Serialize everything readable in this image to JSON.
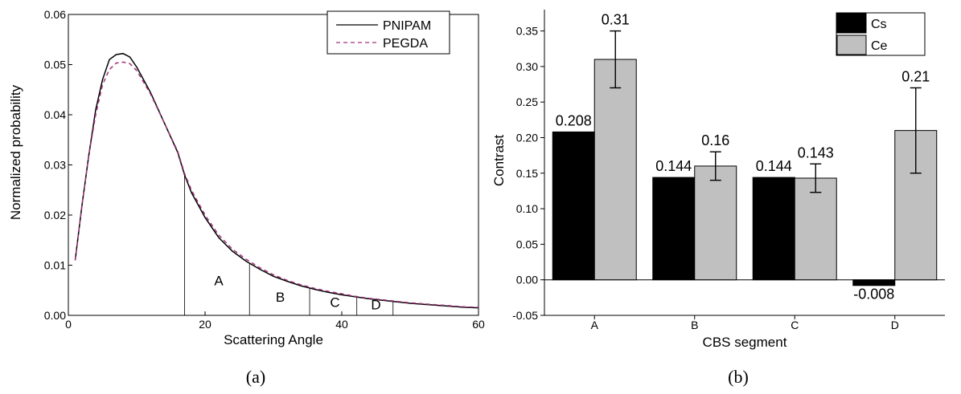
{
  "chart_data": [
    {
      "type": "line",
      "panel_label": "(a)",
      "xlabel": "Scattering Angle",
      "ylabel": "Normalized probability",
      "xlim": [
        0,
        60
      ],
      "ylim": [
        0,
        0.06
      ],
      "x_ticks": [
        "0",
        "20",
        "40",
        "60"
      ],
      "x_tick_values": [
        0,
        20,
        40,
        60
      ],
      "y_ticks": [
        "0.00",
        "0.01",
        "0.02",
        "0.03",
        "0.04",
        "0.05",
        "0.06"
      ],
      "y_tick_values": [
        0,
        0.01,
        0.02,
        0.03,
        0.04,
        0.05,
        0.06
      ],
      "legend_position": "top-right",
      "series": [
        {
          "name": "PNIPAM",
          "color": "#000000",
          "style": "solid",
          "x": [
            1,
            2,
            3,
            4,
            5,
            6,
            7,
            8,
            9,
            10,
            12,
            14,
            16,
            17,
            18,
            20,
            22,
            24,
            26,
            28,
            30,
            32,
            34,
            36,
            38,
            40,
            42,
            44,
            46,
            48,
            50,
            52,
            54,
            56,
            58,
            60
          ],
          "values": [
            0.011,
            0.022,
            0.032,
            0.041,
            0.047,
            0.051,
            0.052,
            0.0522,
            0.0515,
            0.0495,
            0.0445,
            0.0385,
            0.0325,
            0.028,
            0.0245,
            0.0195,
            0.0155,
            0.0128,
            0.0108,
            0.0092,
            0.0078,
            0.0068,
            0.0059,
            0.0052,
            0.0046,
            0.0041,
            0.0037,
            0.0033,
            0.003,
            0.0027,
            0.0024,
            0.0022,
            0.002,
            0.0018,
            0.0016,
            0.0015
          ]
        },
        {
          "name": "PEGDA",
          "color": "#a0307a",
          "style": "dashed",
          "x": [
            1,
            2,
            3,
            4,
            5,
            6,
            7,
            8,
            9,
            10,
            12,
            14,
            16,
            17,
            18,
            20,
            22,
            24,
            26,
            28,
            30,
            32,
            34,
            36,
            38,
            40,
            42,
            44,
            46,
            48,
            50,
            52,
            54,
            56,
            58,
            60
          ],
          "values": [
            0.011,
            0.022,
            0.032,
            0.04,
            0.046,
            0.049,
            0.0503,
            0.0505,
            0.0502,
            0.0488,
            0.0442,
            0.0385,
            0.0327,
            0.0283,
            0.025,
            0.02,
            0.016,
            0.0132,
            0.0112,
            0.0095,
            0.0081,
            0.007,
            0.0061,
            0.0054,
            0.0048,
            0.0043,
            0.0038,
            0.0034,
            0.0031,
            0.0028,
            0.0025,
            0.0023,
            0.0021,
            0.0019,
            0.0017,
            0.0016
          ]
        }
      ],
      "segment_boundaries": [
        17,
        26.5,
        35.3,
        42.2,
        47.5
      ],
      "segments": [
        {
          "label": "A",
          "x": 22,
          "y": 0.006
        },
        {
          "label": "B",
          "x": 31,
          "y": 0.0027
        },
        {
          "label": "C",
          "x": 39,
          "y": 0.0017
        },
        {
          "label": "D",
          "x": 45,
          "y": 0.0012
        }
      ]
    },
    {
      "type": "bar",
      "panel_label": "(b)",
      "xlabel": "CBS segment",
      "ylabel": "Contrast",
      "categories": [
        "A",
        "B",
        "C",
        "D"
      ],
      "ylim": [
        -0.05,
        0.38
      ],
      "y_ticks": [
        "-0.05",
        "0.00",
        "0.05",
        "0.10",
        "0.15",
        "0.20",
        "0.25",
        "0.30",
        "0.35"
      ],
      "y_tick_values": [
        -0.05,
        0,
        0.05,
        0.1,
        0.15,
        0.2,
        0.25,
        0.3,
        0.35
      ],
      "legend_position": "top-right",
      "series": [
        {
          "name": "Cs",
          "color": "#000000",
          "values": [
            0.208,
            0.144,
            0.144,
            -0.008
          ],
          "labels": [
            "0.208",
            "0.144",
            "0.144",
            "-0.008"
          ]
        },
        {
          "name": "Ce",
          "color": "#c0c0c0",
          "values": [
            0.31,
            0.16,
            0.143,
            0.21
          ],
          "labels": [
            "0.31",
            "0.16",
            "0.143",
            "0.21"
          ],
          "errors": [
            0.04,
            0.02,
            0.02,
            0.06
          ]
        }
      ]
    }
  ]
}
